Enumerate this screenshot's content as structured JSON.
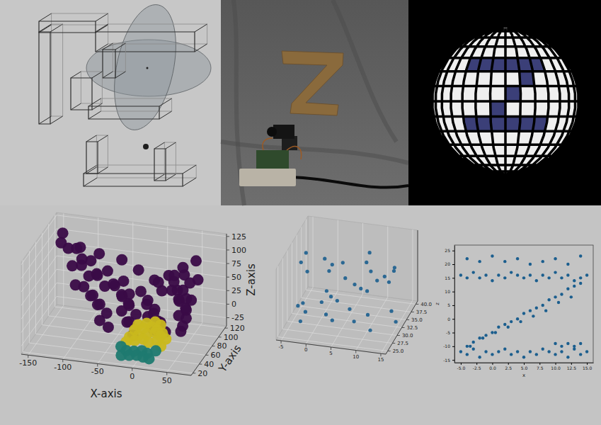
{
  "chart_data": [
    {
      "type": "scatter3d",
      "xlabel": "X-axis",
      "ylabel": "Y-axis",
      "zlabel": "Z-axis",
      "xlim": [
        -160,
        85
      ],
      "ylim": [
        15,
        125
      ],
      "zlim": [
        -40,
        130
      ],
      "xticks": [
        -150,
        -100,
        -50,
        0,
        50
      ],
      "yticks": [
        20,
        40,
        60,
        80,
        100,
        120
      ],
      "zticks": [
        -25,
        0,
        25,
        50,
        75,
        100,
        125
      ],
      "grid": true,
      "marker": "circle",
      "series": [
        {
          "color": "#3a0b47",
          "x": [
            -60,
            -40,
            -20,
            0,
            20,
            40,
            -70,
            -50,
            -30,
            -10,
            10,
            30,
            45,
            -80,
            -60,
            -40,
            -20,
            0,
            20,
            40,
            50,
            -90,
            -70,
            -50,
            -30,
            -10,
            10,
            30,
            50,
            -100,
            -80,
            -60,
            -40,
            -20,
            0,
            20,
            40,
            55,
            -105,
            -85,
            -65,
            -45,
            -25,
            -5,
            15,
            35,
            55,
            -108,
            -88,
            -68,
            -48,
            -28,
            10,
            30,
            50,
            60,
            -112,
            -92,
            -72,
            -52,
            25,
            45,
            60,
            -115,
            -98,
            -80,
            40,
            55,
            -120,
            -105,
            50,
            -135,
            -128
          ],
          "y": [
            70,
            85,
            60,
            95,
            75,
            80,
            65,
            90,
            70,
            85,
            60,
            95,
            75,
            80,
            65,
            90,
            70,
            85,
            60,
            95,
            75,
            80,
            65,
            90,
            70,
            85,
            60,
            95,
            75,
            80,
            65,
            90,
            70,
            85,
            60,
            95,
            75,
            80,
            65,
            90,
            70,
            85,
            60,
            95,
            75,
            80,
            65,
            90,
            70,
            85,
            60,
            95,
            75,
            80,
            65,
            90,
            70,
            85,
            60,
            95,
            75,
            80,
            65,
            90,
            70,
            85,
            60,
            95,
            75,
            80,
            65,
            90,
            70
          ],
          "z": [
            -20,
            -20,
            -20,
            -20,
            -20,
            -20,
            -5,
            -5,
            -5,
            -5,
            -5,
            -5,
            -5,
            10,
            10,
            10,
            10,
            10,
            10,
            10,
            10,
            25,
            25,
            25,
            25,
            25,
            25,
            25,
            25,
            40,
            40,
            40,
            40,
            40,
            40,
            40,
            40,
            40,
            55,
            55,
            55,
            55,
            55,
            55,
            55,
            55,
            55,
            70,
            70,
            70,
            70,
            70,
            70,
            70,
            70,
            70,
            85,
            85,
            85,
            85,
            85,
            85,
            85,
            100,
            100,
            100,
            100,
            100,
            112,
            112,
            112,
            125,
            125
          ]
        },
        {
          "color": "#c9b81e",
          "x": [
            -10,
            0,
            10,
            20,
            -15,
            -5,
            5,
            15,
            25,
            -20,
            -10,
            0,
            10,
            20,
            30,
            -25,
            -15,
            -5,
            5,
            15,
            25
          ],
          "y": [
            55,
            60,
            65,
            60,
            55,
            60,
            65,
            60,
            55,
            50,
            55,
            60,
            65,
            60,
            55,
            50,
            55,
            60,
            55,
            60,
            50
          ],
          "z": [
            5,
            5,
            5,
            5,
            -5,
            -5,
            -5,
            -5,
            -5,
            -15,
            -15,
            -15,
            -15,
            -15,
            -15,
            -25,
            -25,
            -25,
            -25,
            -25,
            -25
          ]
        },
        {
          "color": "#1f7a70",
          "x": [
            -30,
            -20,
            -10,
            0,
            10,
            20,
            -25,
            -15,
            -5,
            5,
            15
          ],
          "y": [
            45,
            40,
            42,
            45,
            40,
            45,
            35,
            38,
            40,
            38,
            35
          ],
          "z": [
            -30,
            -32,
            -33,
            -33,
            -32,
            -30,
            -37,
            -38,
            -38,
            -38,
            -37
          ]
        }
      ]
    },
    {
      "type": "scatter3d",
      "xlim": [
        -6,
        16
      ],
      "ylim": [
        24,
        41
      ],
      "zlim": [
        -16,
        26
      ],
      "xticks": [
        -5,
        0,
        5,
        10,
        15
      ],
      "yticks": [
        {
          "value": 25,
          "label": "25.0"
        },
        27.5,
        {
          "value": 30,
          "label": "30.0"
        },
        32.5,
        {
          "value": 35,
          "label": "35.0"
        },
        37.5,
        {
          "value": 40,
          "label": "40.0"
        }
      ],
      "grid": true,
      "marker": "circle",
      "series": [
        {
          "color": "#1b5e8e",
          "x": [
            -4,
            -2,
            0,
            2,
            4,
            6,
            8,
            10,
            12,
            14,
            -3,
            3,
            9,
            15,
            -4,
            -2,
            0,
            2,
            4,
            6,
            8,
            10,
            12,
            14,
            -5,
            -3,
            -1,
            1,
            3,
            5,
            7,
            9,
            11,
            13,
            15
          ],
          "y": [
            32,
            30,
            34,
            31,
            33,
            29,
            35,
            32,
            30,
            34,
            32,
            30,
            34,
            31,
            33,
            29,
            35,
            32,
            30,
            34,
            32,
            30,
            34,
            31,
            33,
            29,
            35,
            32,
            30,
            34,
            31,
            33,
            29,
            35,
            32
          ],
          "z": [
            16,
            15,
            16,
            15,
            17,
            16,
            15,
            16,
            15,
            16,
            22,
            21,
            23,
            20,
            -10,
            -7,
            -5,
            -2,
            0,
            3,
            5,
            8,
            10,
            13,
            -12,
            -13,
            -12,
            -13,
            -12,
            -12,
            -13,
            -12,
            -13,
            -12,
            -12
          ]
        }
      ]
    },
    {
      "type": "scatter",
      "xlabel": "x",
      "ylabel": "z",
      "xlim": [
        -6,
        16
      ],
      "ylim": [
        -16,
        27
      ],
      "xticks": [
        {
          "value": -5,
          "label": "-5.0"
        },
        -2.5,
        {
          "value": 0,
          "label": "0.0"
        },
        2.5,
        {
          "value": 5,
          "label": "5.0"
        },
        7.5,
        {
          "value": 10,
          "label": "10.0"
        },
        12.5,
        {
          "value": 15,
          "label": "15.0"
        }
      ],
      "yticks": [
        -15,
        -10,
        -5,
        0,
        5,
        10,
        15,
        20,
        25
      ],
      "marker": "circle",
      "series": [
        {
          "color": "#1b5e8e",
          "x": [
            -5,
            -4,
            -3,
            -2,
            -1,
            0,
            1,
            2,
            3,
            4,
            5,
            6,
            7,
            8,
            9,
            10,
            11,
            12,
            13,
            14,
            15,
            -4,
            -2,
            0,
            2,
            4,
            6,
            8,
            10,
            12,
            14,
            -4,
            -3,
            -2,
            -1,
            0,
            1,
            2,
            3,
            4,
            5,
            6,
            7,
            8,
            9,
            10,
            11,
            12,
            13,
            14,
            -3.5,
            -1.5,
            0.5,
            2.5,
            4.5,
            6.5,
            8.5,
            10.5,
            12.5,
            -5,
            -4,
            -3,
            -2,
            -1,
            0,
            1,
            2,
            3,
            4,
            5,
            6,
            7,
            8,
            9,
            10,
            11,
            12,
            13,
            14,
            15,
            10,
            11,
            12,
            13,
            14
          ],
          "values": [
            16,
            15,
            17,
            15,
            16,
            14,
            16,
            15,
            17,
            16,
            15,
            16,
            14,
            16,
            15,
            17,
            15,
            16,
            14,
            15,
            16,
            22,
            21,
            23,
            21,
            22,
            20,
            21,
            22,
            20,
            23,
            -10,
            -8.5,
            -7,
            -6,
            -5,
            -3,
            -2,
            -1,
            0,
            2,
            3,
            4,
            5,
            7,
            8,
            9,
            11,
            12,
            13,
            -10,
            -7,
            -5,
            -3,
            -1,
            1,
            3,
            6,
            8,
            -12,
            -13,
            -11,
            -14,
            -12,
            -13,
            -12,
            -11,
            -13,
            -12,
            -14,
            -12,
            -13,
            -11,
            -12,
            -13,
            -12,
            -14,
            -11,
            -13,
            -12,
            -9,
            -10,
            -9,
            -10,
            -9
          ]
        }
      ]
    }
  ]
}
